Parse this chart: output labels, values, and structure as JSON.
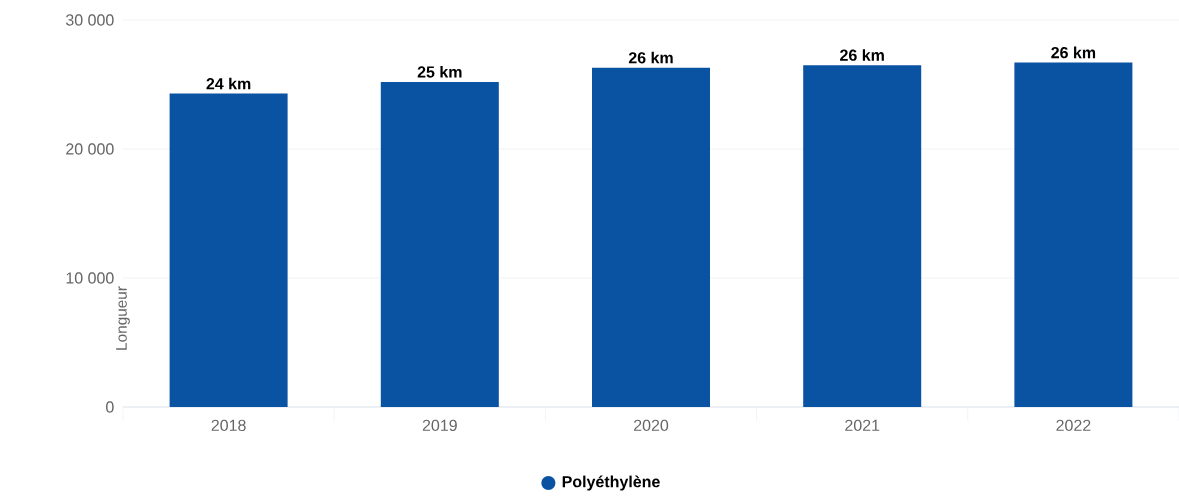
{
  "chart_data": {
    "type": "bar",
    "ylabel": "Longueur",
    "categories": [
      "2018",
      "2019",
      "2020",
      "2021",
      "2022"
    ],
    "series": [
      {
        "name": "Polyéthylène",
        "color": "#0a53a3",
        "values": [
          24300,
          25200,
          26300,
          26500,
          26700
        ]
      }
    ],
    "annotations": [
      {
        "text": "24 km",
        "x": "2018",
        "y": 24300
      },
      {
        "text": "25 km",
        "x": "2019",
        "y": 25200
      },
      {
        "text": "26 km",
        "x": "2020",
        "y": 26300
      },
      {
        "text": "26 km",
        "x": "2021",
        "y": 26500
      },
      {
        "text": "26 km",
        "x": "2022",
        "y": 26700
      }
    ],
    "ylim": [
      0,
      30000
    ],
    "yticks": [
      {
        "value": 0,
        "label": "0"
      },
      {
        "value": 10000,
        "label": "10 000"
      },
      {
        "value": 20000,
        "label": "20 000"
      },
      {
        "value": 30000,
        "label": "30 000"
      }
    ],
    "grid": "y",
    "legend": "bottom"
  }
}
